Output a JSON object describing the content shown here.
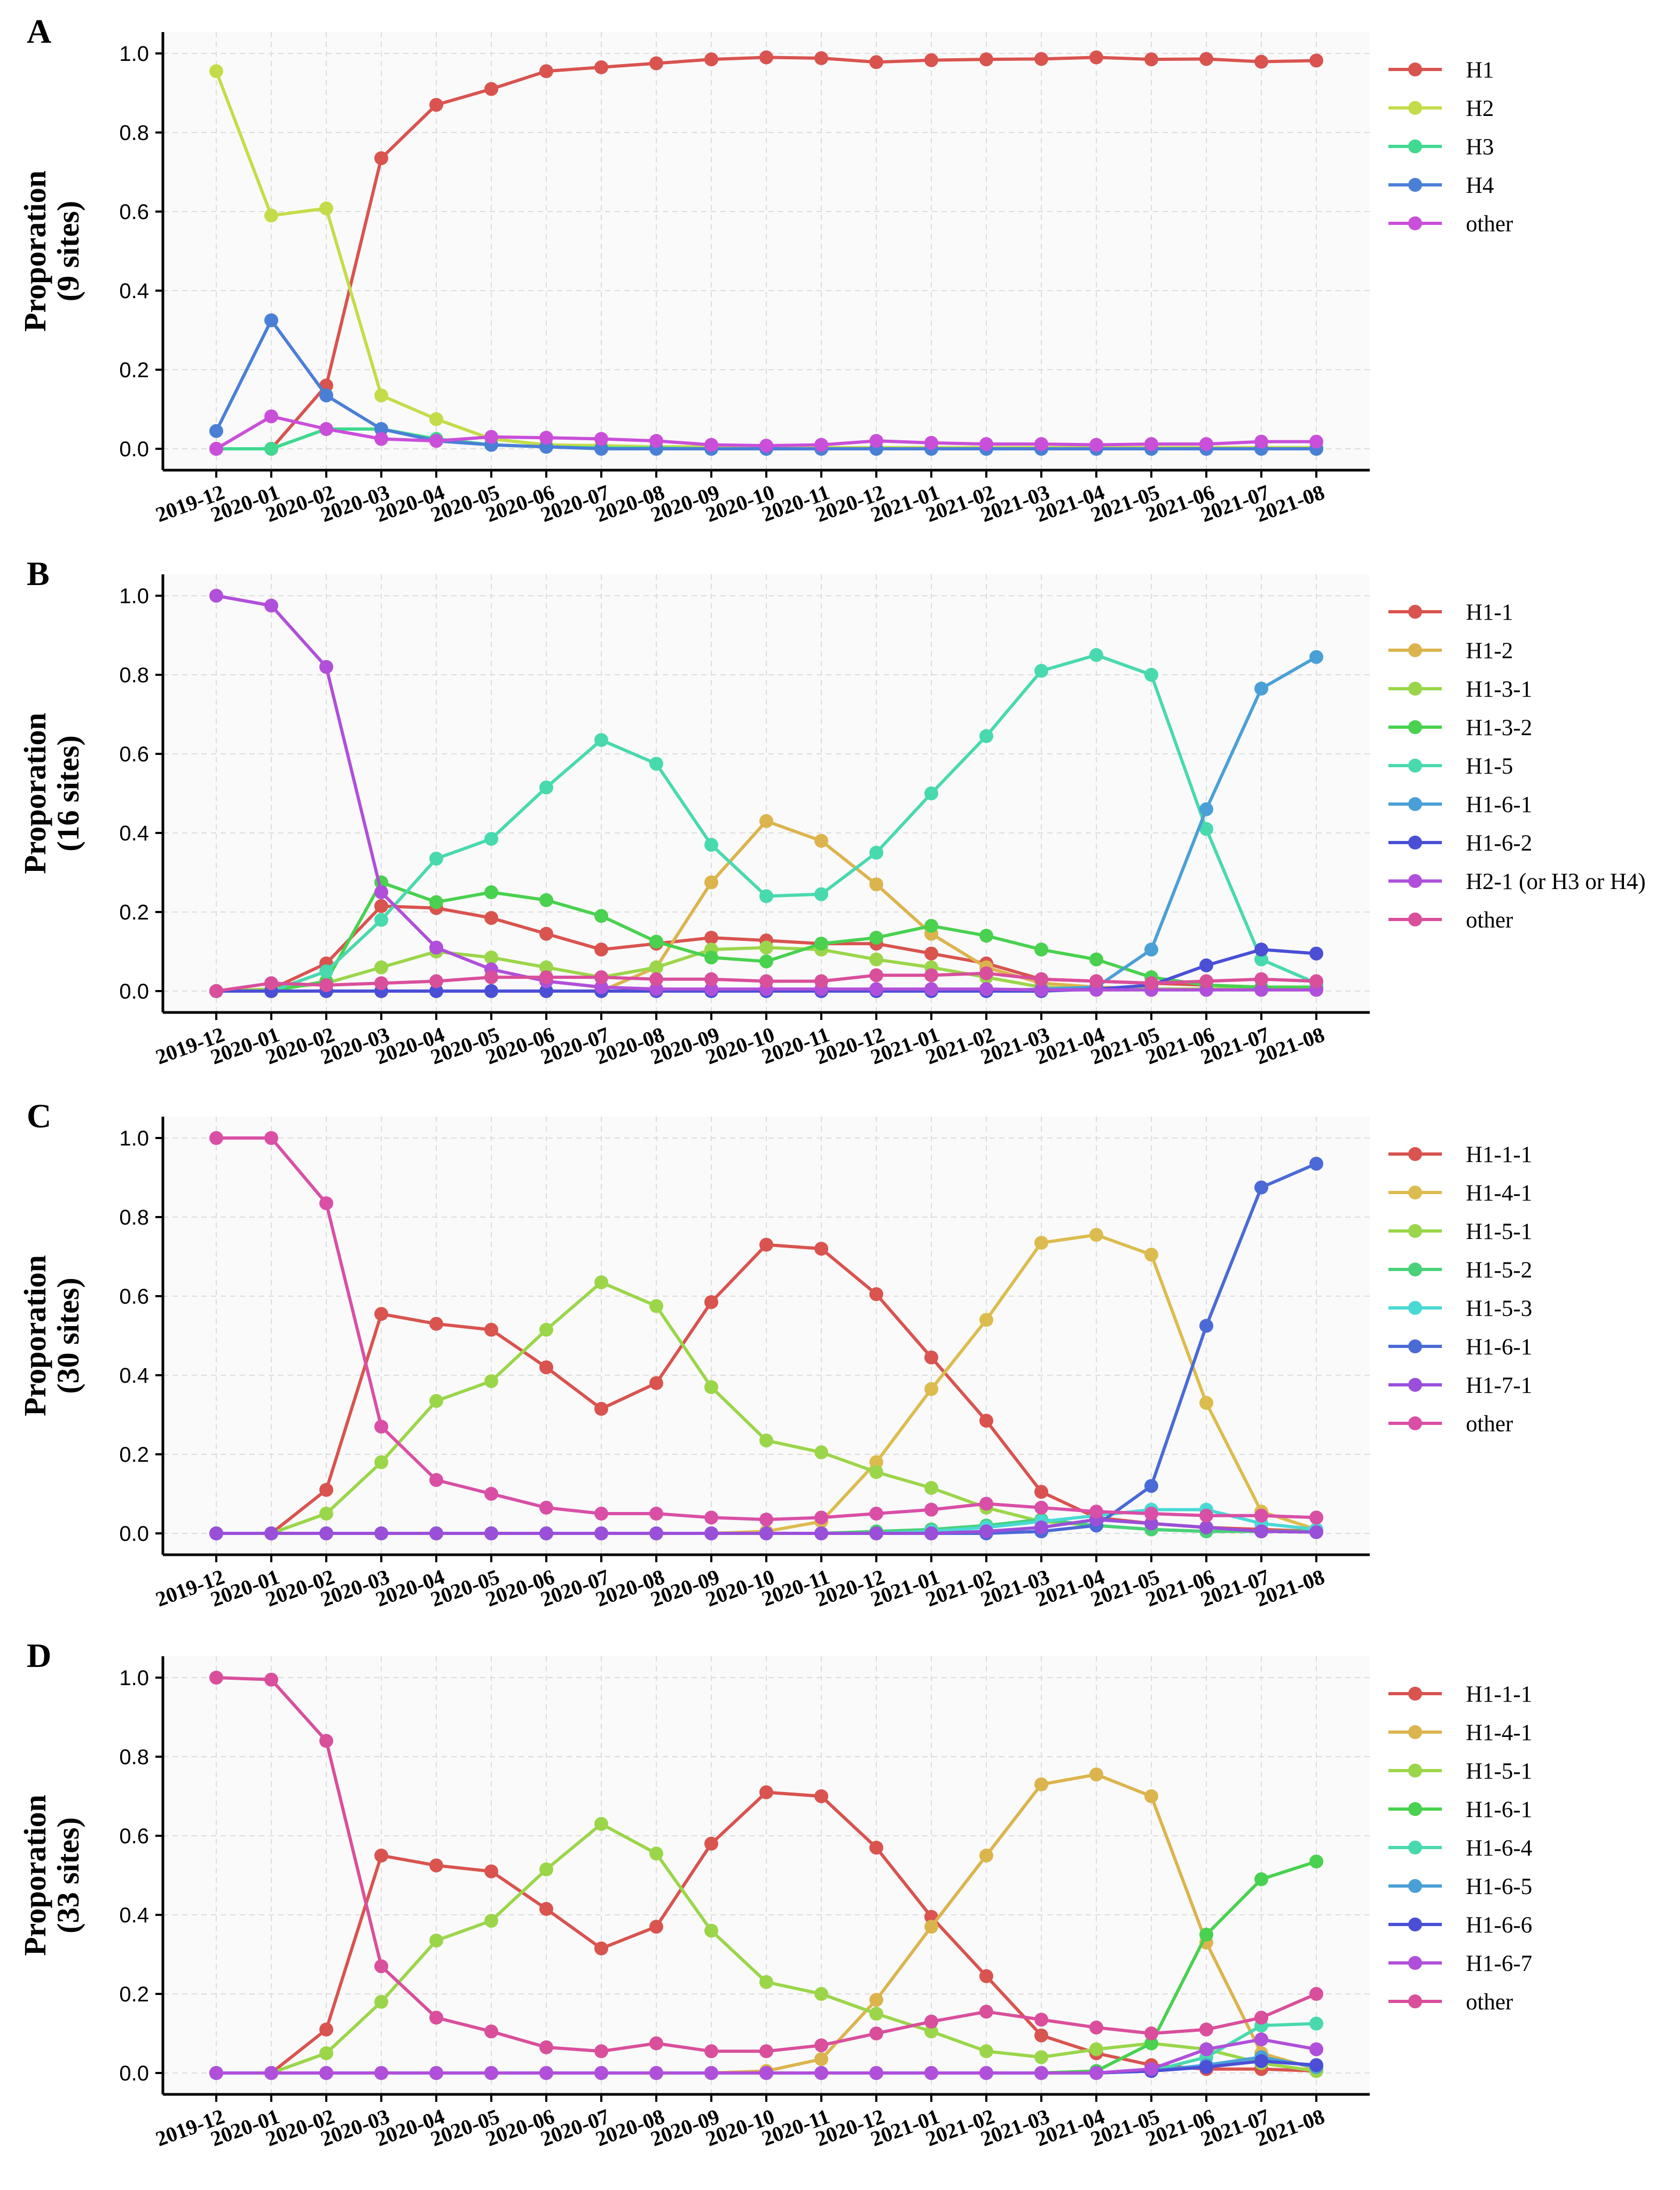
{
  "chart_data": [
    {
      "type": "line",
      "panel_label": "A",
      "ylabel_lines": [
        "Proporation",
        "(9 sites)"
      ],
      "ylim": [
        0,
        1.0
      ],
      "yticks": [
        "0.0",
        "0.2",
        "0.4",
        "0.6",
        "0.8",
        "1.0"
      ],
      "categories": [
        "2019-12",
        "2020-01",
        "2020-02",
        "2020-03",
        "2020-04",
        "2020-05",
        "2020-06",
        "2020-07",
        "2020-08",
        "2020-09",
        "2020-10",
        "2020-11",
        "2020-12",
        "2021-01",
        "2021-02",
        "2021-03",
        "2021-04",
        "2021-05",
        "2021-06",
        "2021-07",
        "2021-08"
      ],
      "legend_position": "right",
      "series": [
        {
          "name": "H1",
          "color": "#d9534f",
          "values": [
            0.0,
            0.0,
            0.16,
            0.735,
            0.87,
            0.91,
            0.955,
            0.965,
            0.975,
            0.985,
            0.99,
            0.988,
            0.978,
            0.983,
            0.985,
            0.986,
            0.99,
            0.985,
            0.986,
            0.979,
            0.982
          ]
        },
        {
          "name": "H2",
          "color": "#c5dc4a",
          "values": [
            0.955,
            0.59,
            0.608,
            0.135,
            0.075,
            0.025,
            0.01,
            0.008,
            0.005,
            0.005,
            0.003,
            0.003,
            0.003,
            0.003,
            0.003,
            0.003,
            0.003,
            0.003,
            0.003,
            0.003,
            0.003
          ]
        },
        {
          "name": "H3",
          "color": "#3fd98f",
          "values": [
            0.0,
            0.0,
            0.05,
            0.05,
            0.025,
            0.01,
            0.005,
            0.002,
            0.002,
            0.0,
            0.0,
            0.0,
            0.0,
            0.0,
            0.0,
            0.0,
            0.0,
            0.0,
            0.0,
            0.0,
            0.0
          ]
        },
        {
          "name": "H4",
          "color": "#4a7fd6",
          "values": [
            0.045,
            0.325,
            0.135,
            0.05,
            0.02,
            0.01,
            0.005,
            0.0,
            0.0,
            0.0,
            0.0,
            0.0,
            0.0,
            0.0,
            0.0,
            0.0,
            0.0,
            0.0,
            0.0,
            0.0,
            0.0
          ]
        },
        {
          "name": "other",
          "color": "#c94fd9",
          "values": [
            0.0,
            0.082,
            0.05,
            0.025,
            0.02,
            0.03,
            0.028,
            0.025,
            0.02,
            0.01,
            0.008,
            0.01,
            0.02,
            0.015,
            0.012,
            0.012,
            0.01,
            0.012,
            0.012,
            0.018,
            0.018
          ]
        }
      ]
    },
    {
      "type": "line",
      "panel_label": "B",
      "ylabel_lines": [
        "Proporation",
        "(16 sites)"
      ],
      "ylim": [
        0,
        1.0
      ],
      "yticks": [
        "0.0",
        "0.2",
        "0.4",
        "0.6",
        "0.8",
        "1.0"
      ],
      "categories": [
        "2019-12",
        "2020-01",
        "2020-02",
        "2020-03",
        "2020-04",
        "2020-05",
        "2020-06",
        "2020-07",
        "2020-08",
        "2020-09",
        "2020-10",
        "2020-11",
        "2020-12",
        "2021-01",
        "2021-02",
        "2021-03",
        "2021-04",
        "2021-05",
        "2021-06",
        "2021-07",
        "2021-08"
      ],
      "legend_position": "right",
      "series": [
        {
          "name": "H1-1",
          "color": "#d9534f",
          "values": [
            0.0,
            0.005,
            0.07,
            0.215,
            0.21,
            0.185,
            0.145,
            0.105,
            0.12,
            0.135,
            0.128,
            0.12,
            0.12,
            0.095,
            0.07,
            0.03,
            0.025,
            0.02,
            0.015,
            0.01,
            0.01
          ]
        },
        {
          "name": "H1-2",
          "color": "#dcb44e",
          "values": [
            0.0,
            0.0,
            0.0,
            0.0,
            0.0,
            0.0,
            0.0,
            0.0,
            0.06,
            0.275,
            0.43,
            0.38,
            0.27,
            0.145,
            0.06,
            0.02,
            0.01,
            0.005,
            0.005,
            0.005,
            0.005
          ]
        },
        {
          "name": "H1-3-1",
          "color": "#9bd64a",
          "values": [
            0.0,
            0.005,
            0.02,
            0.06,
            0.1,
            0.085,
            0.06,
            0.035,
            0.06,
            0.105,
            0.11,
            0.105,
            0.08,
            0.06,
            0.035,
            0.01,
            0.005,
            0.005,
            0.005,
            0.005,
            0.005
          ]
        },
        {
          "name": "H1-3-2",
          "color": "#49d14f",
          "values": [
            0.0,
            0.0,
            0.025,
            0.275,
            0.225,
            0.25,
            0.23,
            0.19,
            0.125,
            0.085,
            0.075,
            0.12,
            0.135,
            0.165,
            0.14,
            0.105,
            0.08,
            0.035,
            0.015,
            0.01,
            0.01
          ]
        },
        {
          "name": "H1-5",
          "color": "#49d9ae",
          "values": [
            0.0,
            0.0,
            0.05,
            0.18,
            0.335,
            0.385,
            0.515,
            0.635,
            0.575,
            0.37,
            0.24,
            0.245,
            0.35,
            0.5,
            0.645,
            0.81,
            0.85,
            0.8,
            0.41,
            0.08,
            0.02
          ]
        },
        {
          "name": "H1-6-1",
          "color": "#4aa0d6",
          "values": [
            0.0,
            0.0,
            0.0,
            0.0,
            0.0,
            0.0,
            0.0,
            0.0,
            0.0,
            0.0,
            0.0,
            0.0,
            0.0,
            0.0,
            0.0,
            0.005,
            0.01,
            0.105,
            0.46,
            0.765,
            0.845
          ]
        },
        {
          "name": "H1-6-2",
          "color": "#4a4fd6",
          "values": [
            0.0,
            0.0,
            0.0,
            0.0,
            0.0,
            0.0,
            0.0,
            0.0,
            0.0,
            0.0,
            0.0,
            0.0,
            0.0,
            0.0,
            0.0,
            0.0,
            0.005,
            0.015,
            0.065,
            0.105,
            0.095
          ]
        },
        {
          "name": "H2-1 (or H3 or H4)",
          "color": "#b04fd9",
          "values": [
            1.0,
            0.975,
            0.82,
            0.25,
            0.11,
            0.055,
            0.025,
            0.01,
            0.005,
            0.005,
            0.005,
            0.005,
            0.005,
            0.005,
            0.005,
            0.003,
            0.003,
            0.003,
            0.003,
            0.003,
            0.003
          ]
        },
        {
          "name": "other",
          "color": "#d94f9b",
          "values": [
            0.0,
            0.02,
            0.015,
            0.02,
            0.025,
            0.035,
            0.035,
            0.035,
            0.03,
            0.03,
            0.025,
            0.025,
            0.04,
            0.04,
            0.045,
            0.03,
            0.025,
            0.02,
            0.025,
            0.03,
            0.025
          ]
        }
      ]
    },
    {
      "type": "line",
      "panel_label": "C",
      "ylabel_lines": [
        "Proporation",
        "(30 sites)"
      ],
      "ylim": [
        0,
        1.0
      ],
      "yticks": [
        "0.0",
        "0.2",
        "0.4",
        "0.6",
        "0.8",
        "1.0"
      ],
      "categories": [
        "2019-12",
        "2020-01",
        "2020-02",
        "2020-03",
        "2020-04",
        "2020-05",
        "2020-06",
        "2020-07",
        "2020-08",
        "2020-09",
        "2020-10",
        "2020-11",
        "2020-12",
        "2021-01",
        "2021-02",
        "2021-03",
        "2021-04",
        "2021-05",
        "2021-06",
        "2021-07",
        "2021-08"
      ],
      "legend_position": "right",
      "series": [
        {
          "name": "H1-1-1",
          "color": "#d9534f",
          "values": [
            0.0,
            0.0,
            0.11,
            0.555,
            0.53,
            0.515,
            0.42,
            0.315,
            0.38,
            0.585,
            0.73,
            0.72,
            0.605,
            0.445,
            0.285,
            0.105,
            0.04,
            0.025,
            0.015,
            0.01,
            0.005
          ]
        },
        {
          "name": "H1-4-1",
          "color": "#dcbc4e",
          "values": [
            0.0,
            0.0,
            0.0,
            0.0,
            0.0,
            0.0,
            0.0,
            0.0,
            0.0,
            0.0,
            0.005,
            0.03,
            0.18,
            0.365,
            0.54,
            0.735,
            0.755,
            0.705,
            0.33,
            0.055,
            0.01
          ]
        },
        {
          "name": "H1-5-1",
          "color": "#9bd64a",
          "values": [
            0.0,
            0.0,
            0.05,
            0.18,
            0.335,
            0.385,
            0.515,
            0.635,
            0.575,
            0.37,
            0.235,
            0.205,
            0.155,
            0.115,
            0.065,
            0.03,
            0.02,
            0.01,
            0.005,
            0.005,
            0.005
          ]
        },
        {
          "name": "H1-5-2",
          "color": "#49d179",
          "values": [
            0.0,
            0.0,
            0.0,
            0.0,
            0.0,
            0.0,
            0.0,
            0.0,
            0.0,
            0.0,
            0.0,
            0.0,
            0.005,
            0.01,
            0.02,
            0.035,
            0.02,
            0.01,
            0.005,
            0.005,
            0.005
          ]
        },
        {
          "name": "H1-5-3",
          "color": "#49d9d4",
          "values": [
            0.0,
            0.0,
            0.0,
            0.0,
            0.0,
            0.0,
            0.0,
            0.0,
            0.0,
            0.0,
            0.0,
            0.0,
            0.0,
            0.005,
            0.015,
            0.03,
            0.045,
            0.06,
            0.06,
            0.025,
            0.01
          ]
        },
        {
          "name": "H1-6-1",
          "color": "#4a6ad6",
          "values": [
            0.0,
            0.0,
            0.0,
            0.0,
            0.0,
            0.0,
            0.0,
            0.0,
            0.0,
            0.0,
            0.0,
            0.0,
            0.0,
            0.0,
            0.0,
            0.005,
            0.02,
            0.12,
            0.525,
            0.875,
            0.935
          ]
        },
        {
          "name": "H1-7-1",
          "color": "#9a4fd9",
          "values": [
            0.0,
            0.0,
            0.0,
            0.0,
            0.0,
            0.0,
            0.0,
            0.0,
            0.0,
            0.0,
            0.0,
            0.0,
            0.0,
            0.0,
            0.005,
            0.015,
            0.035,
            0.025,
            0.015,
            0.005,
            0.003
          ]
        },
        {
          "name": "other",
          "color": "#d94fa6",
          "values": [
            1.0,
            1.0,
            0.835,
            0.27,
            0.135,
            0.1,
            0.065,
            0.05,
            0.05,
            0.04,
            0.035,
            0.04,
            0.05,
            0.06,
            0.075,
            0.065,
            0.055,
            0.05,
            0.045,
            0.045,
            0.04
          ]
        }
      ]
    },
    {
      "type": "line",
      "panel_label": "D",
      "ylabel_lines": [
        "Proporation",
        "(33 sites)"
      ],
      "ylim": [
        0,
        1.0
      ],
      "yticks": [
        "0.0",
        "0.2",
        "0.4",
        "0.6",
        "0.8",
        "1.0"
      ],
      "categories": [
        "2019-12",
        "2020-01",
        "2020-02",
        "2020-03",
        "2020-04",
        "2020-05",
        "2020-06",
        "2020-07",
        "2020-08",
        "2020-09",
        "2020-10",
        "2020-11",
        "2020-12",
        "2021-01",
        "2021-02",
        "2021-03",
        "2021-04",
        "2021-05",
        "2021-06",
        "2021-07",
        "2021-08"
      ],
      "legend_position": "right",
      "series": [
        {
          "name": "H1-1-1",
          "color": "#d9534f",
          "values": [
            0.0,
            0.0,
            0.11,
            0.55,
            0.525,
            0.51,
            0.415,
            0.315,
            0.37,
            0.58,
            0.71,
            0.7,
            0.57,
            0.395,
            0.245,
            0.095,
            0.05,
            0.02,
            0.01,
            0.01,
            0.005
          ]
        },
        {
          "name": "H1-4-1",
          "color": "#dcb44e",
          "values": [
            0.0,
            0.0,
            0.0,
            0.0,
            0.0,
            0.0,
            0.0,
            0.0,
            0.0,
            0.0,
            0.005,
            0.035,
            0.185,
            0.37,
            0.55,
            0.73,
            0.755,
            0.7,
            0.33,
            0.05,
            0.01
          ]
        },
        {
          "name": "H1-5-1",
          "color": "#9bd64a",
          "values": [
            0.0,
            0.0,
            0.05,
            0.18,
            0.335,
            0.385,
            0.515,
            0.63,
            0.555,
            0.36,
            0.23,
            0.2,
            0.15,
            0.105,
            0.055,
            0.04,
            0.06,
            0.075,
            0.06,
            0.025,
            0.005
          ]
        },
        {
          "name": "H1-6-1",
          "color": "#49d14f",
          "values": [
            0.0,
            0.0,
            0.0,
            0.0,
            0.0,
            0.0,
            0.0,
            0.0,
            0.0,
            0.0,
            0.0,
            0.0,
            0.0,
            0.0,
            0.0,
            0.0,
            0.005,
            0.075,
            0.35,
            0.49,
            0.535
          ]
        },
        {
          "name": "H1-6-4",
          "color": "#49d9ae",
          "values": [
            0.0,
            0.0,
            0.0,
            0.0,
            0.0,
            0.0,
            0.0,
            0.0,
            0.0,
            0.0,
            0.0,
            0.0,
            0.0,
            0.0,
            0.0,
            0.0,
            0.0,
            0.005,
            0.04,
            0.12,
            0.125
          ]
        },
        {
          "name": "H1-6-5",
          "color": "#4aa0d6",
          "values": [
            0.0,
            0.0,
            0.0,
            0.0,
            0.0,
            0.0,
            0.0,
            0.0,
            0.0,
            0.0,
            0.0,
            0.0,
            0.0,
            0.0,
            0.0,
            0.0,
            0.0,
            0.005,
            0.02,
            0.04,
            0.015
          ]
        },
        {
          "name": "H1-6-6",
          "color": "#4a4fd6",
          "values": [
            0.0,
            0.0,
            0.0,
            0.0,
            0.0,
            0.0,
            0.0,
            0.0,
            0.0,
            0.0,
            0.0,
            0.0,
            0.0,
            0.0,
            0.0,
            0.0,
            0.0,
            0.005,
            0.015,
            0.03,
            0.02
          ]
        },
        {
          "name": "H1-6-7",
          "color": "#b04fd9",
          "values": [
            0.0,
            0.0,
            0.0,
            0.0,
            0.0,
            0.0,
            0.0,
            0.0,
            0.0,
            0.0,
            0.0,
            0.0,
            0.0,
            0.0,
            0.0,
            0.0,
            0.0,
            0.01,
            0.06,
            0.085,
            0.06
          ]
        },
        {
          "name": "other",
          "color": "#d94f9b",
          "values": [
            1.0,
            0.995,
            0.84,
            0.27,
            0.14,
            0.105,
            0.065,
            0.055,
            0.075,
            0.055,
            0.055,
            0.07,
            0.1,
            0.13,
            0.155,
            0.135,
            0.115,
            0.1,
            0.11,
            0.14,
            0.2
          ]
        }
      ]
    }
  ]
}
